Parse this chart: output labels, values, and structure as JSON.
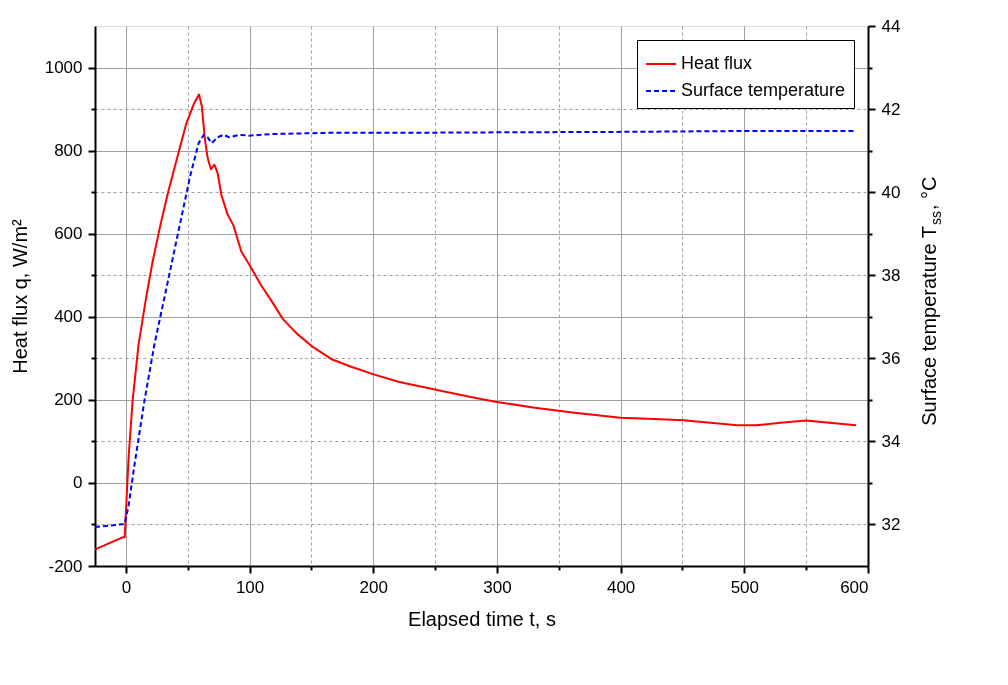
{
  "chart_data": {
    "type": "line",
    "xlabel": "Elapsed time t, s",
    "ylabel": "Heat flux q, W/m²",
    "y2label": "Surface temperature T$_{ss}$, °C",
    "xlim": [
      -25,
      600
    ],
    "xticks": [
      0,
      {
        "value": 50,
        "label": null
      },
      100,
      {
        "value": 150,
        "label": null
      },
      200,
      {
        "value": 250,
        "label": null
      },
      300,
      {
        "value": 350,
        "label": null
      },
      400,
      {
        "value": 450,
        "label": null
      },
      500,
      {
        "value": 550,
        "label": null
      },
      600
    ],
    "ylim": [
      -200,
      1100
    ],
    "yticks": [
      -200,
      {
        "value": -100,
        "label": null
      },
      0,
      {
        "value": 100,
        "label": null
      },
      200,
      {
        "value": 300,
        "label": null
      },
      400,
      {
        "value": 500,
        "label": null
      },
      600,
      {
        "value": 700,
        "label": null
      },
      800,
      {
        "value": 900,
        "label": null
      },
      1000
    ],
    "y2lim": [
      31,
      44
    ],
    "y2ticks": [
      32,
      {
        "value": 33,
        "label": null
      },
      34,
      {
        "value": 35,
        "label": null
      },
      36,
      {
        "value": 37,
        "label": null
      },
      38,
      {
        "value": 39,
        "label": null
      },
      40,
      {
        "value": 41,
        "label": null
      },
      42,
      {
        "value": 43,
        "label": null
      },
      44
    ],
    "grid": true,
    "legend": "top right",
    "marker": "none",
    "series": [
      {
        "name": "Heat flux",
        "color": "#ff0000",
        "line_style": "solid",
        "x": [
          -25,
          -2.6,
          -1,
          2.2,
          5.4,
          10.2,
          16,
          21.4,
          27.8,
          34.2,
          42.2,
          48.6,
          55,
          59.1,
          61.3,
          63.9,
          66.1,
          68.7,
          71.6,
          74.1,
          77.3,
          82.1,
          86.9,
          93.3,
          99.7,
          109.3,
          117.3,
          126.8,
          138,
          150.8,
          166.8,
          182.7,
          199.7,
          221,
          249.8,
          278.6,
          300,
          330.5,
          362.6,
          400,
          426.7,
          450.7,
          474.8,
          494,
          510,
          529.4,
          550,
          571,
          590.3
        ],
        "values": [
          -160,
          -131,
          -131,
          63,
          198,
          333,
          440,
          530,
          620,
          701,
          791,
          863,
          913,
          935,
          908,
          827,
          782,
          755,
          766,
          746,
          692,
          647,
          620,
          557,
          526,
          476,
          440,
          395,
          360,
          328,
          297,
          279,
          262,
          243,
          225,
          207,
          195,
          181,
          169,
          157,
          154,
          151,
          144,
          139,
          139,
          145,
          150,
          144,
          139
        ]
      },
      {
        "name": "Surface temperature",
        "color": "#0000ff",
        "line_style": "dashed",
        "axis": "y2",
        "x": [
          -25,
          -1,
          2.2,
          7,
          15,
          23,
          32.6,
          42.2,
          51.8,
          58.8,
          63,
          66.1,
          69.3,
          74.1,
          78.9,
          83.7,
          91.7,
          99.7,
          118.8,
          166.8,
          230.7,
          300,
          394.6,
          490.9,
          590
        ],
        "values": [
          31.94,
          32.01,
          32.46,
          33.45,
          34.98,
          36.33,
          37.67,
          39.02,
          40.37,
          41.18,
          41.38,
          41.32,
          41.18,
          41.32,
          41.38,
          41.32,
          41.38,
          41.36,
          41.4,
          41.43,
          41.43,
          41.44,
          41.45,
          41.47,
          41.47
        ]
      }
    ]
  }
}
